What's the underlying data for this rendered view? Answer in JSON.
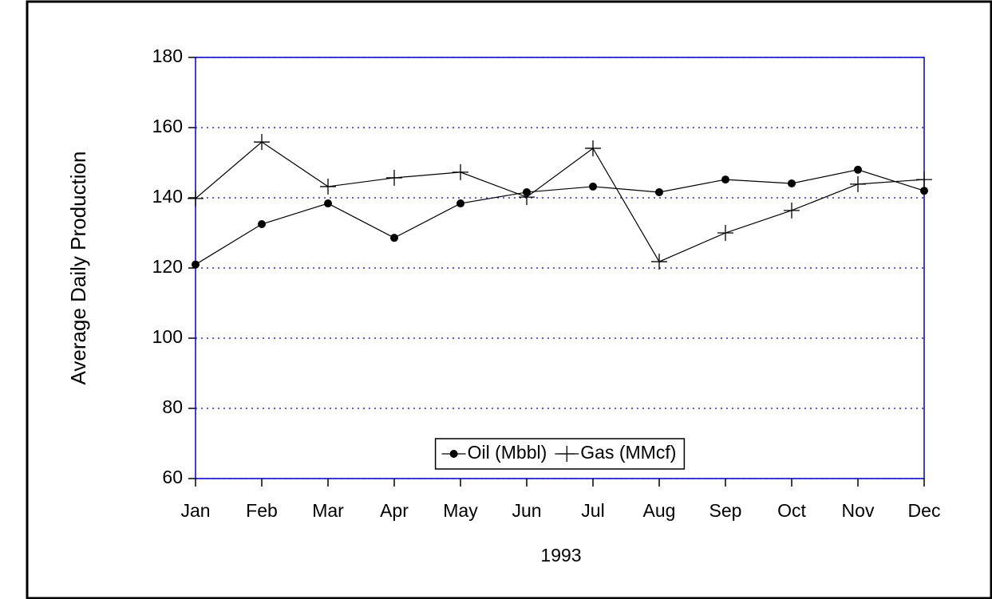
{
  "chart_data": {
    "type": "line",
    "xlabel": "1993",
    "ylabel": "Average Daily Production",
    "categories": [
      "Jan",
      "Feb",
      "Mar",
      "Apr",
      "May",
      "Jun",
      "Jul",
      "Aug",
      "Sep",
      "Oct",
      "Nov",
      "Dec"
    ],
    "series": [
      {
        "name": "Oil (Mbbl)",
        "color": "#000000",
        "marker": "circle",
        "values": [
          121,
          132.5,
          138.4,
          128.6,
          138.4,
          141.6,
          143.2,
          141.6,
          145.2,
          144.1,
          148,
          142
        ]
      },
      {
        "name": "Gas (MMcf)",
        "color": "#000000",
        "marker": "plus",
        "values": [
          139.8,
          155.9,
          143.2,
          145.7,
          147.3,
          140.2,
          154.1,
          121.8,
          130,
          136.4,
          143.9,
          145.2
        ]
      }
    ],
    "ylim": [
      60,
      180
    ],
    "yticks": [
      60,
      80,
      100,
      120,
      140,
      160,
      180
    ],
    "grid": true,
    "grid_color": "#0000cc",
    "frame_color": "#0000cc",
    "legend": "lower center"
  }
}
